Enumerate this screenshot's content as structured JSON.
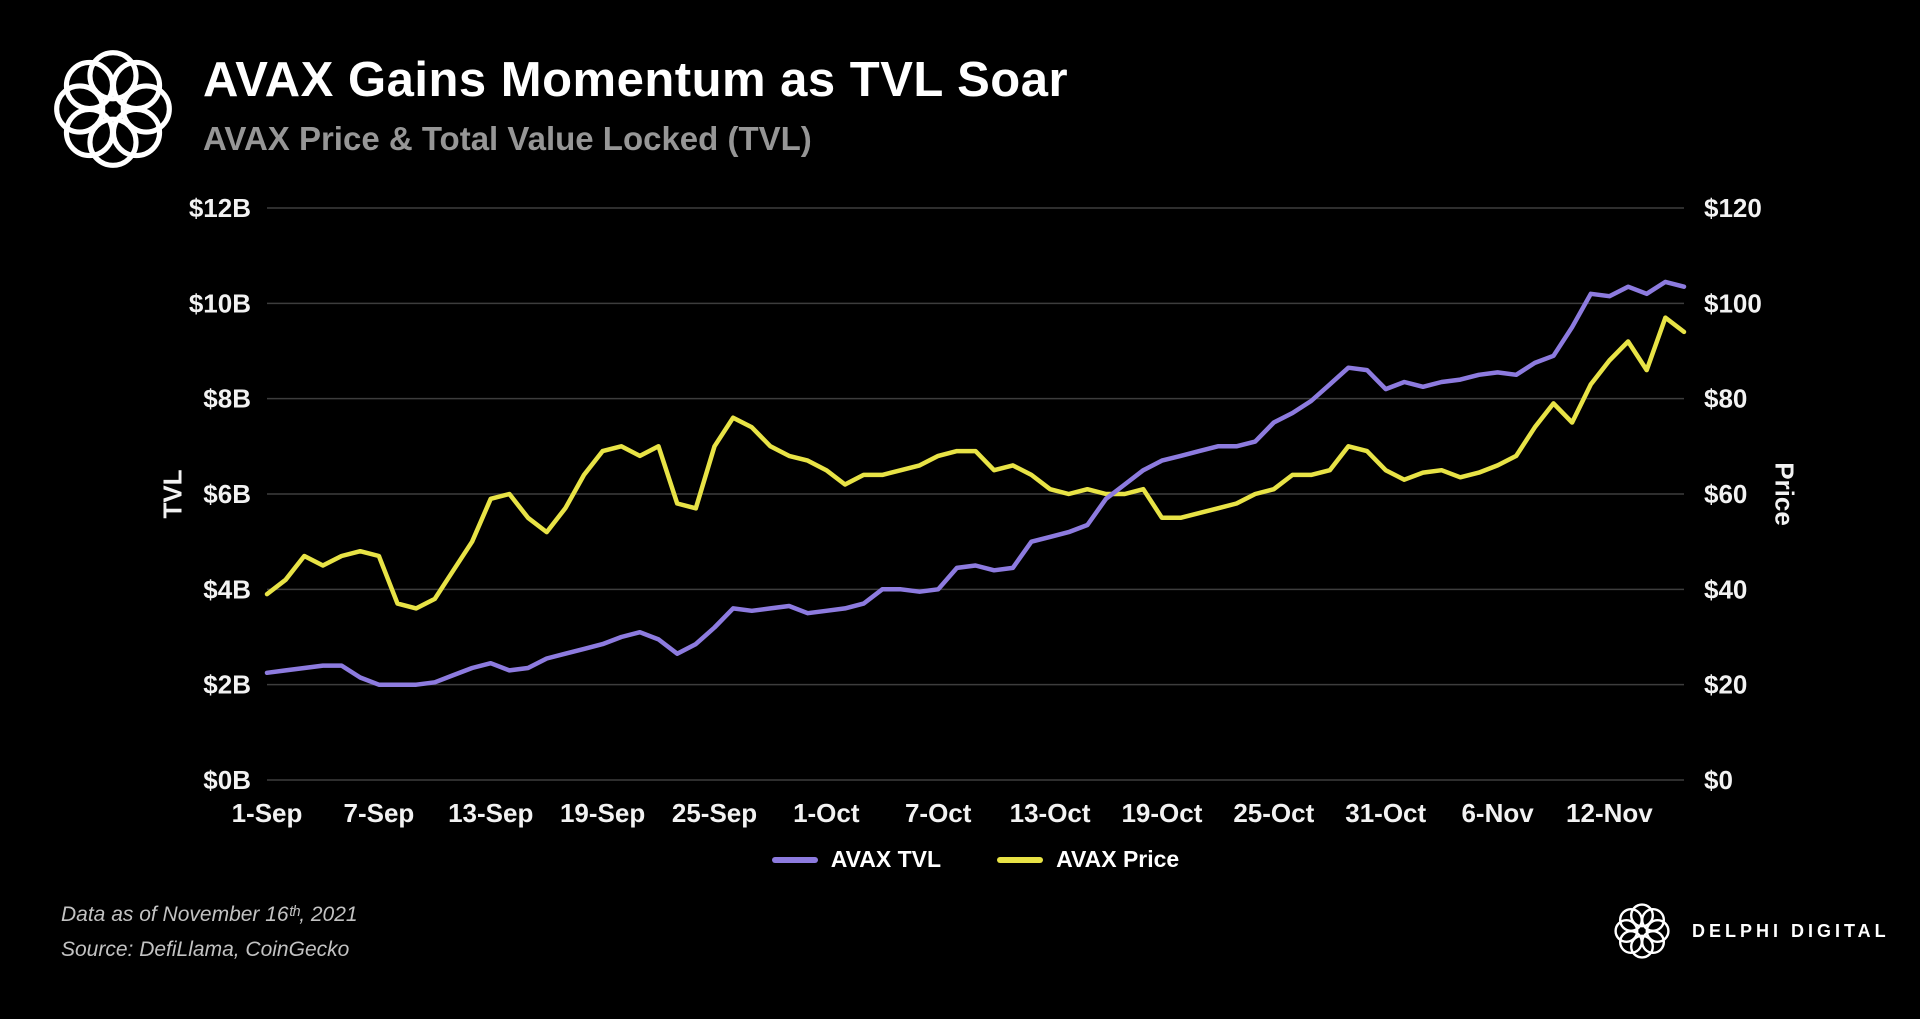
{
  "header": {
    "title": "AVAX Gains Momentum as TVL Soar",
    "subtitle": "AVAX Price & Total Value Locked (TVL)"
  },
  "footer": {
    "note_line1": "Data as of November 16ᵗʰ, 2021",
    "note_line2": "Source: DefiLlama, CoinGecko",
    "brand": "DELPHI DIGITAL"
  },
  "chart_data": {
    "type": "line",
    "title": "AVAX Price & Total Value Locked (TVL)",
    "ylabel_left": "TVL",
    "ylabel_right": "Price",
    "ylim_left": [
      0,
      12
    ],
    "ylim_right": [
      0,
      120
    ],
    "yticks_left": [
      "$0B",
      "$2B",
      "$4B",
      "$6B",
      "$8B",
      "$10B",
      "$12B"
    ],
    "yticks_right": [
      "$0",
      "$20",
      "$40",
      "$60",
      "$80",
      "$100",
      "$120"
    ],
    "grid": true,
    "grid_color": "#3d3d3d",
    "legend_position": "bottom",
    "x_dates": [
      "1-Sep",
      "2-Sep",
      "3-Sep",
      "4-Sep",
      "5-Sep",
      "6-Sep",
      "7-Sep",
      "8-Sep",
      "9-Sep",
      "10-Sep",
      "11-Sep",
      "12-Sep",
      "13-Sep",
      "14-Sep",
      "15-Sep",
      "16-Sep",
      "17-Sep",
      "18-Sep",
      "19-Sep",
      "20-Sep",
      "21-Sep",
      "22-Sep",
      "23-Sep",
      "24-Sep",
      "25-Sep",
      "26-Sep",
      "27-Sep",
      "28-Sep",
      "29-Sep",
      "30-Sep",
      "1-Oct",
      "2-Oct",
      "3-Oct",
      "4-Oct",
      "5-Oct",
      "6-Oct",
      "7-Oct",
      "8-Oct",
      "9-Oct",
      "10-Oct",
      "11-Oct",
      "12-Oct",
      "13-Oct",
      "14-Oct",
      "15-Oct",
      "16-Oct",
      "17-Oct",
      "18-Oct",
      "19-Oct",
      "20-Oct",
      "21-Oct",
      "22-Oct",
      "23-Oct",
      "24-Oct",
      "25-Oct",
      "26-Oct",
      "27-Oct",
      "28-Oct",
      "29-Oct",
      "30-Oct",
      "31-Oct",
      "1-Nov",
      "2-Nov",
      "3-Nov",
      "4-Nov",
      "5-Nov",
      "6-Nov",
      "7-Nov",
      "8-Nov",
      "9-Nov",
      "10-Nov",
      "11-Nov",
      "12-Nov",
      "13-Nov",
      "14-Nov",
      "15-Nov",
      "16-Nov"
    ],
    "xticks": [
      {
        "label": "1-Sep",
        "index": 0
      },
      {
        "label": "7-Sep",
        "index": 6
      },
      {
        "label": "13-Sep",
        "index": 12
      },
      {
        "label": "19-Sep",
        "index": 18
      },
      {
        "label": "25-Sep",
        "index": 24
      },
      {
        "label": "1-Oct",
        "index": 30
      },
      {
        "label": "7-Oct",
        "index": 36
      },
      {
        "label": "13-Oct",
        "index": 42
      },
      {
        "label": "19-Oct",
        "index": 48
      },
      {
        "label": "25-Oct",
        "index": 54
      },
      {
        "label": "31-Oct",
        "index": 60
      },
      {
        "label": "6-Nov",
        "index": 66
      },
      {
        "label": "12-Nov",
        "index": 72
      }
    ],
    "series": [
      {
        "name": "AVAX TVL",
        "axis": "left",
        "unit": "$B",
        "color": "#8d7bdf",
        "values": [
          2.25,
          2.3,
          2.35,
          2.4,
          2.4,
          2.15,
          2.0,
          2.0,
          2.0,
          2.05,
          2.2,
          2.35,
          2.45,
          2.3,
          2.35,
          2.55,
          2.65,
          2.75,
          2.85,
          3.0,
          3.1,
          2.95,
          2.65,
          2.85,
          3.2,
          3.6,
          3.55,
          3.6,
          3.65,
          3.5,
          3.55,
          3.6,
          3.7,
          4.0,
          4.0,
          3.95,
          4.0,
          4.45,
          4.5,
          4.4,
          4.45,
          5.0,
          5.1,
          5.2,
          5.35,
          5.9,
          6.2,
          6.5,
          6.7,
          6.8,
          6.9,
          7.0,
          7.0,
          7.1,
          7.5,
          7.7,
          7.95,
          8.3,
          8.65,
          8.6,
          8.2,
          8.35,
          8.25,
          8.35,
          8.4,
          8.5,
          8.55,
          8.5,
          8.75,
          8.9,
          9.5,
          10.2,
          10.15,
          10.35,
          10.2,
          10.45,
          10.35
        ]
      },
      {
        "name": "AVAX Price",
        "axis": "right",
        "unit": "$",
        "color": "#e8e346",
        "values": [
          39,
          42,
          47,
          45,
          47,
          48,
          47,
          37,
          36,
          38,
          44,
          50,
          59,
          60,
          55,
          52,
          57,
          64,
          69,
          70,
          68,
          70,
          58,
          57,
          70,
          76,
          74,
          70,
          68,
          67,
          65,
          62,
          64,
          64,
          65,
          66,
          68,
          69,
          69,
          65,
          66,
          64,
          61,
          60,
          61,
          60,
          60,
          61,
          55,
          55,
          56,
          57,
          58,
          60,
          61,
          64,
          64,
          65,
          70,
          69,
          65,
          63,
          64.5,
          65,
          63.5,
          64.5,
          66,
          68,
          74,
          79,
          75,
          83,
          88,
          92,
          86,
          97,
          94
        ]
      }
    ]
  }
}
